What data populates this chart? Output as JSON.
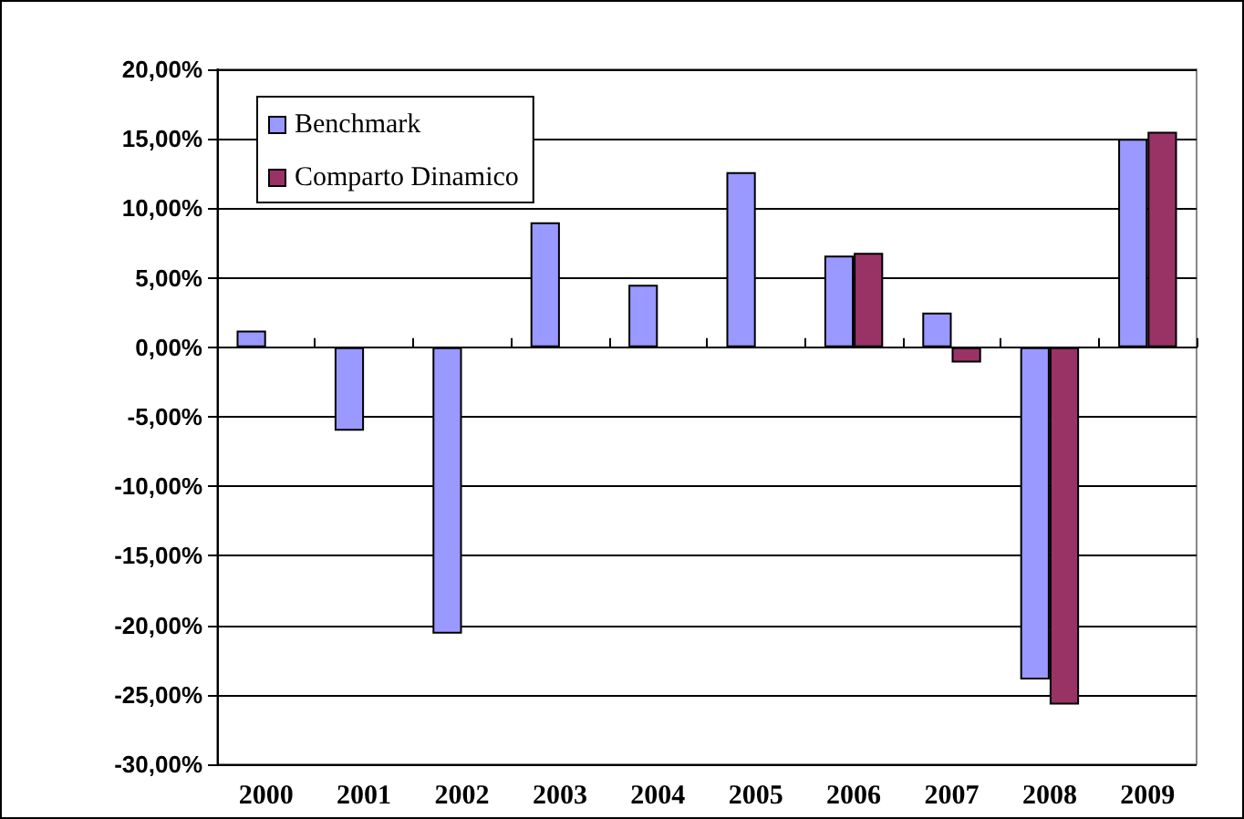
{
  "chart_data": {
    "type": "bar",
    "categories": [
      "2000",
      "2001",
      "2002",
      "2003",
      "2004",
      "2005",
      "2006",
      "2007",
      "2008",
      "2009"
    ],
    "series": [
      {
        "name": "Benchmark",
        "color": "#9999ff",
        "values": [
          1.2,
          -6.0,
          -20.6,
          9.0,
          4.5,
          12.6,
          6.6,
          2.5,
          -23.9,
          15.0
        ]
      },
      {
        "name": "Comparto Dinamico",
        "color": "#993366",
        "values": [
          null,
          null,
          null,
          null,
          null,
          null,
          6.8,
          -1.1,
          -25.7,
          15.5
        ]
      }
    ],
    "ylim": [
      -30,
      20
    ],
    "yticks": [
      {
        "value": -30,
        "label": "-30,00%"
      },
      {
        "value": -25,
        "label": "-25,00%"
      },
      {
        "value": -20,
        "label": "-20,00%"
      },
      {
        "value": -15,
        "label": "-15,00%"
      },
      {
        "value": -10,
        "label": "-10,00%"
      },
      {
        "value": -5,
        "label": "-5,00%"
      },
      {
        "value": 0,
        "label": "0,00%"
      },
      {
        "value": 5,
        "label": "5,00%"
      },
      {
        "value": 10,
        "label": "10,00%"
      },
      {
        "value": 15,
        "label": "15,00%"
      },
      {
        "value": 20,
        "label": "20,00%"
      }
    ],
    "grid": "y",
    "legend": "top left"
  }
}
